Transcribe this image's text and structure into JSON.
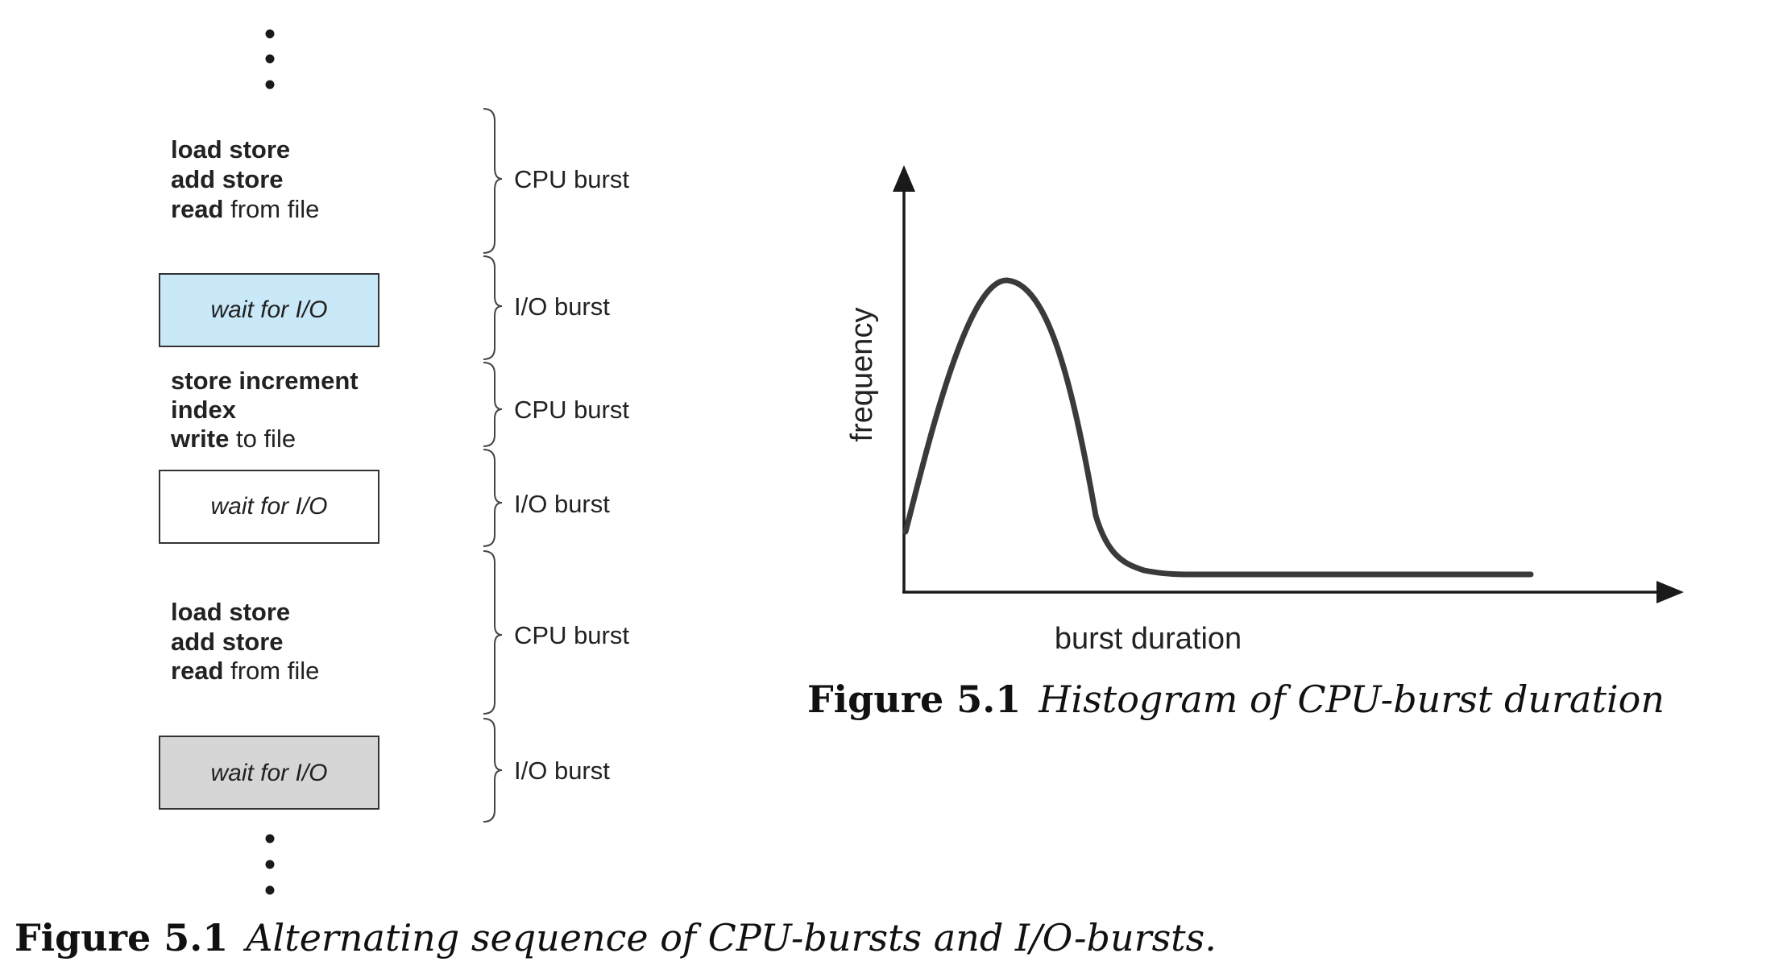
{
  "sequence": {
    "blocks": [
      {
        "kind": "cpu",
        "label": "CPU burst",
        "lines": [
          {
            "bold": "load store",
            "plain": ""
          },
          {
            "bold": "add store",
            "plain": ""
          },
          {
            "bold": "read",
            "plain": " from file"
          }
        ]
      },
      {
        "kind": "io",
        "label": "I/O burst",
        "text": "wait for I/O",
        "fill": "#c9e8f8"
      },
      {
        "kind": "cpu",
        "label": "CPU burst",
        "lines": [
          {
            "bold": "store increment",
            "plain": ""
          },
          {
            "bold": "index",
            "plain": ""
          },
          {
            "bold": "write",
            "plain": " to file"
          }
        ]
      },
      {
        "kind": "io",
        "label": "I/O burst",
        "text": "wait for I/O",
        "fill": "#ffffff"
      },
      {
        "kind": "cpu",
        "label": "CPU burst",
        "lines": [
          {
            "bold": "load store",
            "plain": ""
          },
          {
            "bold": "add store",
            "plain": ""
          },
          {
            "bold": "read",
            "plain": " from file"
          }
        ]
      },
      {
        "kind": "io",
        "label": "I/O burst",
        "text": "wait for I/O",
        "fill": "#d6d6d6"
      }
    ],
    "caption_number": "Figure 5.1",
    "caption_text": "Alternating sequence of CPU-bursts and I/O-bursts."
  },
  "histogram": {
    "xlabel": "burst duration",
    "ylabel": "frequency",
    "caption_number": "Figure 5.1",
    "caption_text": "Histogram of CPU-burst duration"
  },
  "colors": {
    "ink": "#222222",
    "curve": "#3a3a3a",
    "brace": "#444444"
  }
}
